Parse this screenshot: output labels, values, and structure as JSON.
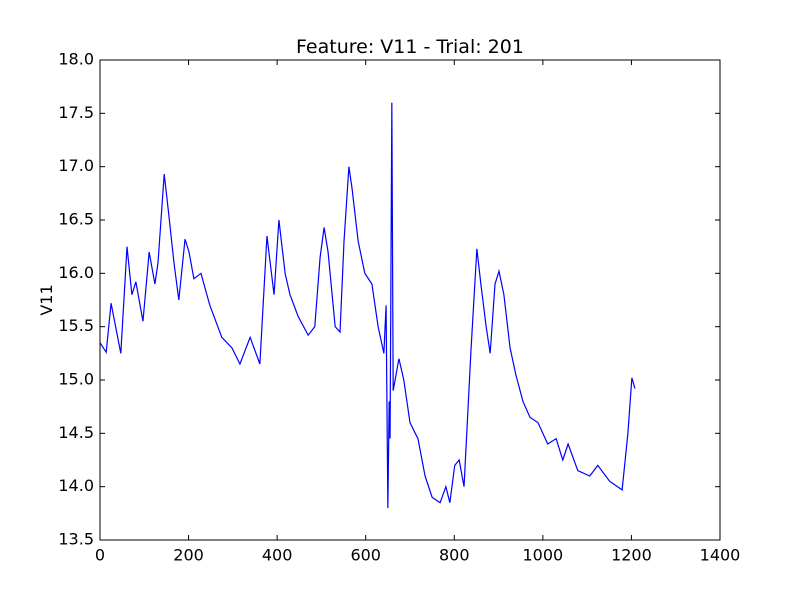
{
  "chart_data": {
    "type": "line",
    "title": "Feature: V11 - Trial: 201",
    "ylabel": "V11",
    "x": [
      0,
      14,
      25,
      47,
      61,
      72,
      81,
      97,
      111,
      124,
      131,
      145,
      154,
      167,
      178,
      192,
      201,
      212,
      228,
      248,
      275,
      298,
      316,
      339,
      361,
      377,
      393,
      404,
      418,
      429,
      447,
      470,
      485,
      497,
      506,
      515,
      531,
      542,
      551,
      562,
      569,
      583,
      598,
      614,
      628,
      641,
      646,
      650,
      653,
      655,
      659,
      662,
      675,
      686,
      700,
      718,
      734,
      750,
      768,
      781,
      790,
      801,
      811,
      822,
      838,
      851,
      860,
      872,
      881,
      892,
      901,
      912,
      926,
      939,
      955,
      971,
      989,
      1011,
      1030,
      1045,
      1057,
      1079,
      1106,
      1124,
      1151,
      1179,
      1192,
      1201,
      1208
    ],
    "values": [
      15.35,
      15.26,
      15.72,
      15.25,
      16.25,
      15.8,
      15.92,
      15.55,
      16.2,
      15.9,
      16.1,
      16.93,
      16.6,
      16.1,
      15.75,
      16.32,
      16.2,
      15.95,
      16.0,
      15.7,
      15.4,
      15.3,
      15.15,
      15.4,
      15.15,
      16.35,
      15.8,
      16.5,
      16.0,
      15.8,
      15.6,
      15.42,
      15.5,
      16.15,
      16.43,
      16.2,
      15.5,
      15.45,
      16.3,
      17.0,
      16.8,
      16.3,
      16.0,
      15.9,
      15.5,
      15.25,
      15.7,
      13.8,
      14.8,
      14.45,
      17.6,
      14.9,
      15.2,
      15.0,
      14.6,
      14.45,
      14.1,
      13.9,
      13.85,
      14.0,
      13.85,
      14.2,
      14.25,
      14.0,
      15.3,
      16.23,
      15.9,
      15.5,
      15.25,
      15.9,
      16.02,
      15.8,
      15.3,
      15.05,
      14.8,
      14.65,
      14.6,
      14.4,
      14.45,
      14.25,
      14.4,
      14.15,
      14.1,
      14.2,
      14.05,
      13.97,
      14.5,
      15.02,
      14.92
    ],
    "color": "#0000ff",
    "xlim": [
      0,
      1400
    ],
    "xticks": [
      0,
      200,
      400,
      600,
      800,
      1000,
      1200,
      1400
    ],
    "ylim": [
      13.5,
      18
    ],
    "yticks": [
      13.5,
      {
        "value": 14,
        "label": "14.0"
      },
      14.5,
      {
        "value": 15,
        "label": "15.0"
      },
      15.5,
      {
        "value": 16,
        "label": "16.0"
      },
      16.5,
      {
        "value": 17,
        "label": "17.0"
      },
      17.5,
      {
        "value": 18,
        "label": "18.0"
      }
    ],
    "grid": false
  }
}
